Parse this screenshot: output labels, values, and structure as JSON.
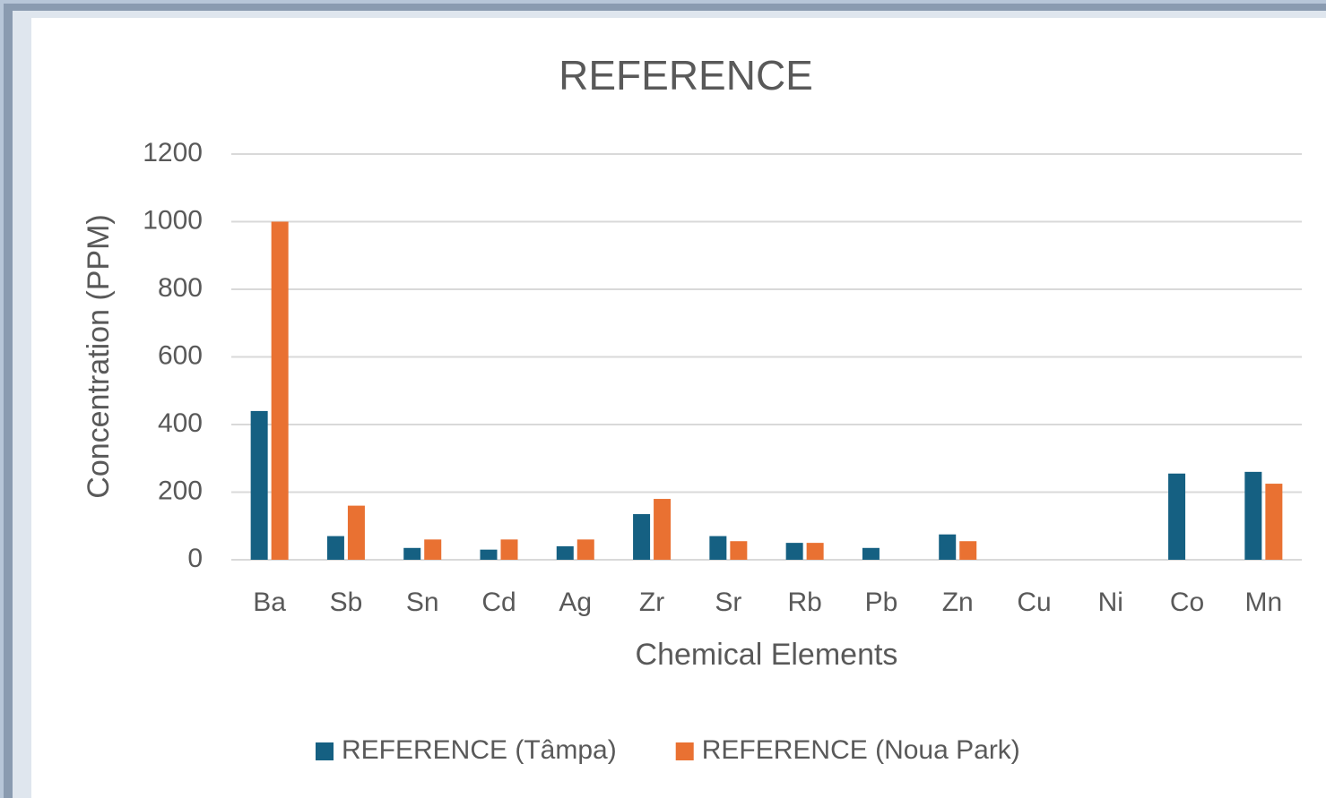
{
  "chart_data": {
    "type": "bar",
    "title": "REFERENCE",
    "x_label": "Chemical Elements",
    "y_label": "Concentration (PPM)",
    "categories": [
      "Ba",
      "Sb",
      "Sn",
      "Cd",
      "Ag",
      "Zr",
      "Sr",
      "Rb",
      "Pb",
      "Zn",
      "Cu",
      "Ni",
      "Co",
      "Mn"
    ],
    "series": [
      {
        "name": "REFERENCE (Tâmpa)",
        "color": "#156082",
        "values": [
          440,
          70,
          35,
          30,
          40,
          135,
          70,
          50,
          35,
          75,
          null,
          null,
          255,
          260
        ]
      },
      {
        "name": "REFERENCE (Noua Park)",
        "color": "#e97132",
        "values": [
          1000,
          160,
          60,
          60,
          60,
          180,
          55,
          50,
          null,
          55,
          null,
          null,
          null,
          225
        ]
      }
    ],
    "ylim": [
      0,
      1200
    ],
    "yticks": [
      0,
      200,
      400,
      600,
      800,
      1000,
      1200
    ],
    "grid": true,
    "legend": "bottom"
  }
}
